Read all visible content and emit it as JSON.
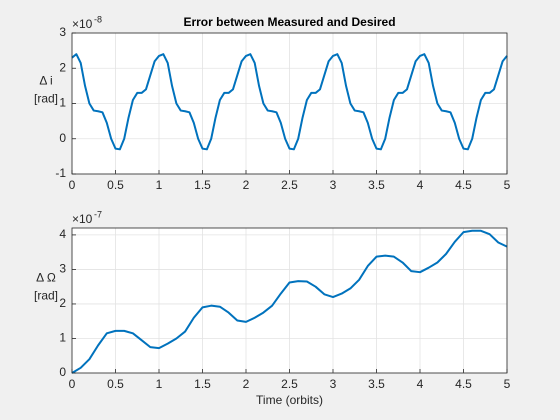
{
  "chart_data": [
    {
      "type": "line",
      "title": "Error between Measured and Desired",
      "ylabel": [
        "Δ i",
        "[rad]"
      ],
      "yscale_label": {
        "base": "×10",
        "exponent": "-8"
      },
      "xlim": [
        0,
        5
      ],
      "xticks": [
        0,
        0.5,
        1,
        1.5,
        2,
        2.5,
        3,
        3.5,
        4,
        4.5,
        5
      ],
      "ylim": [
        -1,
        3
      ],
      "yticks": [
        -1,
        0,
        1,
        2,
        3
      ],
      "grid": true,
      "x": [
        0,
        0.05,
        0.1,
        0.15,
        0.2,
        0.25,
        0.3,
        0.35,
        0.4,
        0.45,
        0.5,
        0.55,
        0.6,
        0.65,
        0.7,
        0.75,
        0.8,
        0.85,
        0.9,
        0.95,
        1,
        1.05,
        1.1,
        1.15,
        1.2,
        1.25,
        1.3,
        1.35,
        1.4,
        1.45,
        1.5,
        1.55,
        1.6,
        1.65,
        1.7,
        1.75,
        1.8,
        1.85,
        1.9,
        1.95,
        2,
        2.05,
        2.1,
        2.15,
        2.2,
        2.25,
        2.3,
        2.35,
        2.4,
        2.45,
        2.5,
        2.55,
        2.6,
        2.65,
        2.7,
        2.75,
        2.8,
        2.85,
        2.9,
        2.95,
        3,
        3.05,
        3.1,
        3.15,
        3.2,
        3.25,
        3.3,
        3.35,
        3.4,
        3.45,
        3.5,
        3.55,
        3.6,
        3.65,
        3.7,
        3.75,
        3.8,
        3.85,
        3.9,
        3.95,
        4,
        4.05,
        4.1,
        4.15,
        4.2,
        4.25,
        4.3,
        4.35,
        4.4,
        4.45,
        4.5,
        4.55,
        4.6,
        4.65,
        4.7,
        4.75,
        4.8,
        4.85,
        4.9,
        4.95,
        5
      ],
      "series": [
        {
          "name": "Δ i",
          "color": "#0072bd",
          "values": [
            2.3,
            2.4,
            2.15,
            1.5,
            1.0,
            0.8,
            0.78,
            0.75,
            0.45,
            0.0,
            -0.28,
            -0.3,
            0.0,
            0.6,
            1.1,
            1.3,
            1.3,
            1.4,
            1.8,
            2.2,
            2.35,
            2.4,
            2.15,
            1.5,
            1.0,
            0.8,
            0.78,
            0.75,
            0.45,
            0.0,
            -0.28,
            -0.3,
            0.0,
            0.6,
            1.1,
            1.3,
            1.3,
            1.4,
            1.8,
            2.2,
            2.35,
            2.4,
            2.15,
            1.5,
            1.0,
            0.8,
            0.78,
            0.75,
            0.45,
            0.0,
            -0.28,
            -0.3,
            0.0,
            0.6,
            1.1,
            1.3,
            1.3,
            1.4,
            1.8,
            2.2,
            2.35,
            2.4,
            2.15,
            1.5,
            1.0,
            0.8,
            0.78,
            0.75,
            0.45,
            0.0,
            -0.28,
            -0.3,
            0.0,
            0.6,
            1.1,
            1.3,
            1.3,
            1.4,
            1.8,
            2.2,
            2.35,
            2.4,
            2.15,
            1.5,
            1.0,
            0.8,
            0.78,
            0.75,
            0.45,
            0.0,
            -0.28,
            -0.3,
            0.0,
            0.6,
            1.1,
            1.3,
            1.3,
            1.4,
            1.8,
            2.2,
            2.35
          ]
        }
      ]
    },
    {
      "type": "line",
      "xlabel": "Time (orbits)",
      "ylabel": [
        "Δ Ω",
        "[rad]"
      ],
      "yscale_label": {
        "base": "×10",
        "exponent": "-7"
      },
      "xlim": [
        0,
        5
      ],
      "xticks": [
        0,
        0.5,
        1,
        1.5,
        2,
        2.5,
        3,
        3.5,
        4,
        4.5,
        5
      ],
      "ylim": [
        0,
        4.2
      ],
      "yticks": [
        0,
        1,
        2,
        3,
        4
      ],
      "grid": true,
      "x": [
        0,
        0.1,
        0.2,
        0.3,
        0.4,
        0.5,
        0.6,
        0.7,
        0.8,
        0.9,
        1,
        1.1,
        1.2,
        1.3,
        1.4,
        1.5,
        1.6,
        1.7,
        1.8,
        1.9,
        2,
        2.1,
        2.2,
        2.3,
        2.4,
        2.5,
        2.6,
        2.7,
        2.8,
        2.9,
        3,
        3.1,
        3.2,
        3.3,
        3.4,
        3.5,
        3.6,
        3.7,
        3.8,
        3.9,
        4,
        4.1,
        4.2,
        4.3,
        4.4,
        4.5,
        4.6,
        4.7,
        4.8,
        4.9,
        5
      ],
      "series": [
        {
          "name": "Δ Ω",
          "color": "#0072bd",
          "values": [
            0,
            0.15,
            0.4,
            0.8,
            1.15,
            1.22,
            1.22,
            1.15,
            0.95,
            0.75,
            0.72,
            0.85,
            1.0,
            1.2,
            1.6,
            1.9,
            1.95,
            1.92,
            1.75,
            1.52,
            1.48,
            1.6,
            1.75,
            1.95,
            2.3,
            2.62,
            2.66,
            2.65,
            2.5,
            2.28,
            2.2,
            2.3,
            2.45,
            2.7,
            3.1,
            3.37,
            3.4,
            3.37,
            3.2,
            2.95,
            2.92,
            3.05,
            3.2,
            3.45,
            3.8,
            4.08,
            4.12,
            4.12,
            4.02,
            3.78,
            3.66
          ]
        }
      ]
    }
  ]
}
